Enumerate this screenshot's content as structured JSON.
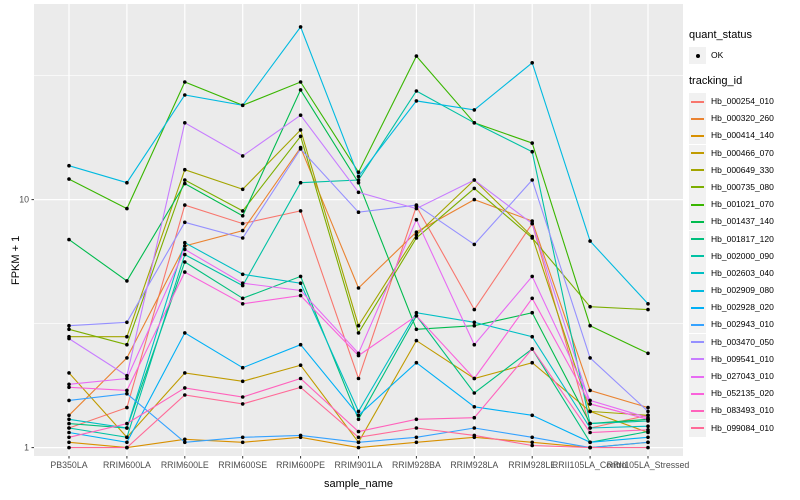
{
  "colors": {
    "panel_background": "#EBEBEB",
    "grid": "#FFFFFF",
    "point": "#000000",
    "tick": "#333333",
    "tick_label": "#4D4D4D"
  },
  "axes": {
    "y_tick_labels": [
      "1",
      "10"
    ],
    "y_tick_values": [
      1,
      10
    ]
  },
  "legend": {
    "quant_status_title": "quant_status",
    "quant_status_items": [
      {
        "label": "OK",
        "marker": "point",
        "color": "#000000"
      }
    ],
    "tracking_id_title": "tracking_id"
  },
  "chart_data": {
    "type": "line",
    "title": "",
    "xlabel": "sample_name",
    "ylabel": "FPKM + 1",
    "y_scale": "log10",
    "y_ticks": [
      1,
      10
    ],
    "ylim": [
      0.93,
      61.5
    ],
    "grid": "on",
    "legend_position": "right",
    "x_categories": [
      "PB350LA",
      "RRIM600LA",
      "RRIM600LE",
      "RRIM600SE",
      "RRIM600PE",
      "RRIM901LA",
      "RRIM928BA",
      "RRIM928LA",
      "RRIM928LE",
      "RRII105LA_Control",
      "RRII105LA_Stressed"
    ],
    "series": [
      {
        "name": "Hb_000254_010",
        "color": "#F8766D",
        "values": [
          1.2,
          1.45,
          9.5,
          8.0,
          9.0,
          1.9,
          9.4,
          3.6,
          8.0,
          1.2,
          1.35
        ]
      },
      {
        "name": "Hb_000320_260",
        "color": "#EA8331",
        "values": [
          1.35,
          2.3,
          6.5,
          7.5,
          16.2,
          4.4,
          7.4,
          10.0,
          8.2,
          1.7,
          1.45
        ]
      },
      {
        "name": "Hb_000414_140",
        "color": "#D89000",
        "values": [
          1.05,
          1.0,
          1.08,
          1.05,
          1.1,
          1.0,
          1.05,
          1.1,
          1.05,
          1.0,
          1.05
        ]
      },
      {
        "name": "Hb_000466_070",
        "color": "#C09B00",
        "values": [
          2.0,
          1.1,
          2.0,
          1.85,
          2.15,
          1.05,
          2.7,
          1.9,
          2.2,
          1.4,
          1.15
        ]
      },
      {
        "name": "Hb_000649_330",
        "color": "#A3A500",
        "values": [
          2.8,
          2.8,
          13.2,
          11.0,
          19.1,
          3.1,
          7.2,
          12.0,
          7.1,
          1.4,
          1.35
        ]
      },
      {
        "name": "Hb_000735_080",
        "color": "#7CAE00",
        "values": [
          3.0,
          2.6,
          12.0,
          9.0,
          18.0,
          2.9,
          7.0,
          11.1,
          7.0,
          3.7,
          3.6
        ]
      },
      {
        "name": "Hb_001021_070",
        "color": "#39B600",
        "values": [
          12.1,
          9.2,
          29.8,
          24.0,
          29.8,
          12.9,
          37.9,
          20.4,
          16.9,
          3.1,
          2.4
        ]
      },
      {
        "name": "Hb_001437_140",
        "color": "#00BB4E",
        "values": [
          6.9,
          4.7,
          11.6,
          8.6,
          27.7,
          11.7,
          3.0,
          3.1,
          3.5,
          1.25,
          1.3
        ]
      },
      {
        "name": "Hb_001817_120",
        "color": "#00BF7D",
        "values": [
          1.25,
          1.2,
          5.6,
          4.0,
          4.9,
          1.3,
          3.4,
          1.66,
          2.5,
          1.05,
          1.16
        ]
      },
      {
        "name": "Hb_002000_090",
        "color": "#00C1A3",
        "values": [
          1.2,
          1.1,
          6.0,
          4.5,
          11.7,
          12.0,
          27.4,
          20.4,
          15.6,
          1.25,
          1.28
        ]
      },
      {
        "name": "Hb_002603_040",
        "color": "#00BFC4",
        "values": [
          1.3,
          1.2,
          6.7,
          5.0,
          4.6,
          1.4,
          3.5,
          3.2,
          2.8,
          1.2,
          1.22
        ]
      },
      {
        "name": "Hb_002909_080",
        "color": "#00BAE0",
        "values": [
          13.7,
          11.7,
          26.4,
          24.0,
          49.7,
          12.4,
          25.0,
          23.0,
          35.6,
          6.8,
          3.8
        ]
      },
      {
        "name": "Hb_002928_020",
        "color": "#00B0F6",
        "values": [
          1.15,
          1.05,
          2.9,
          2.1,
          2.6,
          1.35,
          2.2,
          1.46,
          1.35,
          1.05,
          1.1
        ]
      },
      {
        "name": "Hb_002943_010",
        "color": "#35A2FF",
        "values": [
          1.55,
          1.65,
          1.05,
          1.1,
          1.12,
          1.05,
          1.1,
          1.2,
          1.1,
          1.0,
          1.05
        ]
      },
      {
        "name": "Hb_003470_050",
        "color": "#9590FF",
        "values": [
          3.1,
          3.2,
          8.1,
          7.0,
          16.0,
          8.9,
          9.5,
          6.6,
          12.0,
          2.3,
          1.4
        ]
      },
      {
        "name": "Hb_009541_010",
        "color": "#C77CFF",
        "values": [
          2.75,
          1.95,
          20.4,
          15.0,
          21.9,
          10.7,
          9.2,
          12.0,
          8.0,
          1.5,
          1.3
        ]
      },
      {
        "name": "Hb_027043_010",
        "color": "#E76BF3",
        "values": [
          1.8,
          1.9,
          6.3,
          4.6,
          4.3,
          2.4,
          8.3,
          2.6,
          4.9,
          1.55,
          1.32
        ]
      },
      {
        "name": "Hb_052135_020",
        "color": "#FA62DB",
        "values": [
          1.75,
          1.7,
          5.1,
          3.8,
          4.1,
          2.35,
          3.4,
          1.9,
          4.0,
          1.5,
          1.3
        ]
      },
      {
        "name": "Hb_083493_010",
        "color": "#FF62BC",
        "values": [
          1.1,
          1.25,
          1.74,
          1.6,
          1.9,
          1.16,
          1.3,
          1.32,
          2.5,
          1.15,
          1.18
        ]
      },
      {
        "name": "Hb_099084_010",
        "color": "#FF6A98",
        "values": [
          1.0,
          1.0,
          1.63,
          1.5,
          1.75,
          1.1,
          1.2,
          1.12,
          1.02,
          1.0,
          1.0
        ]
      }
    ]
  }
}
